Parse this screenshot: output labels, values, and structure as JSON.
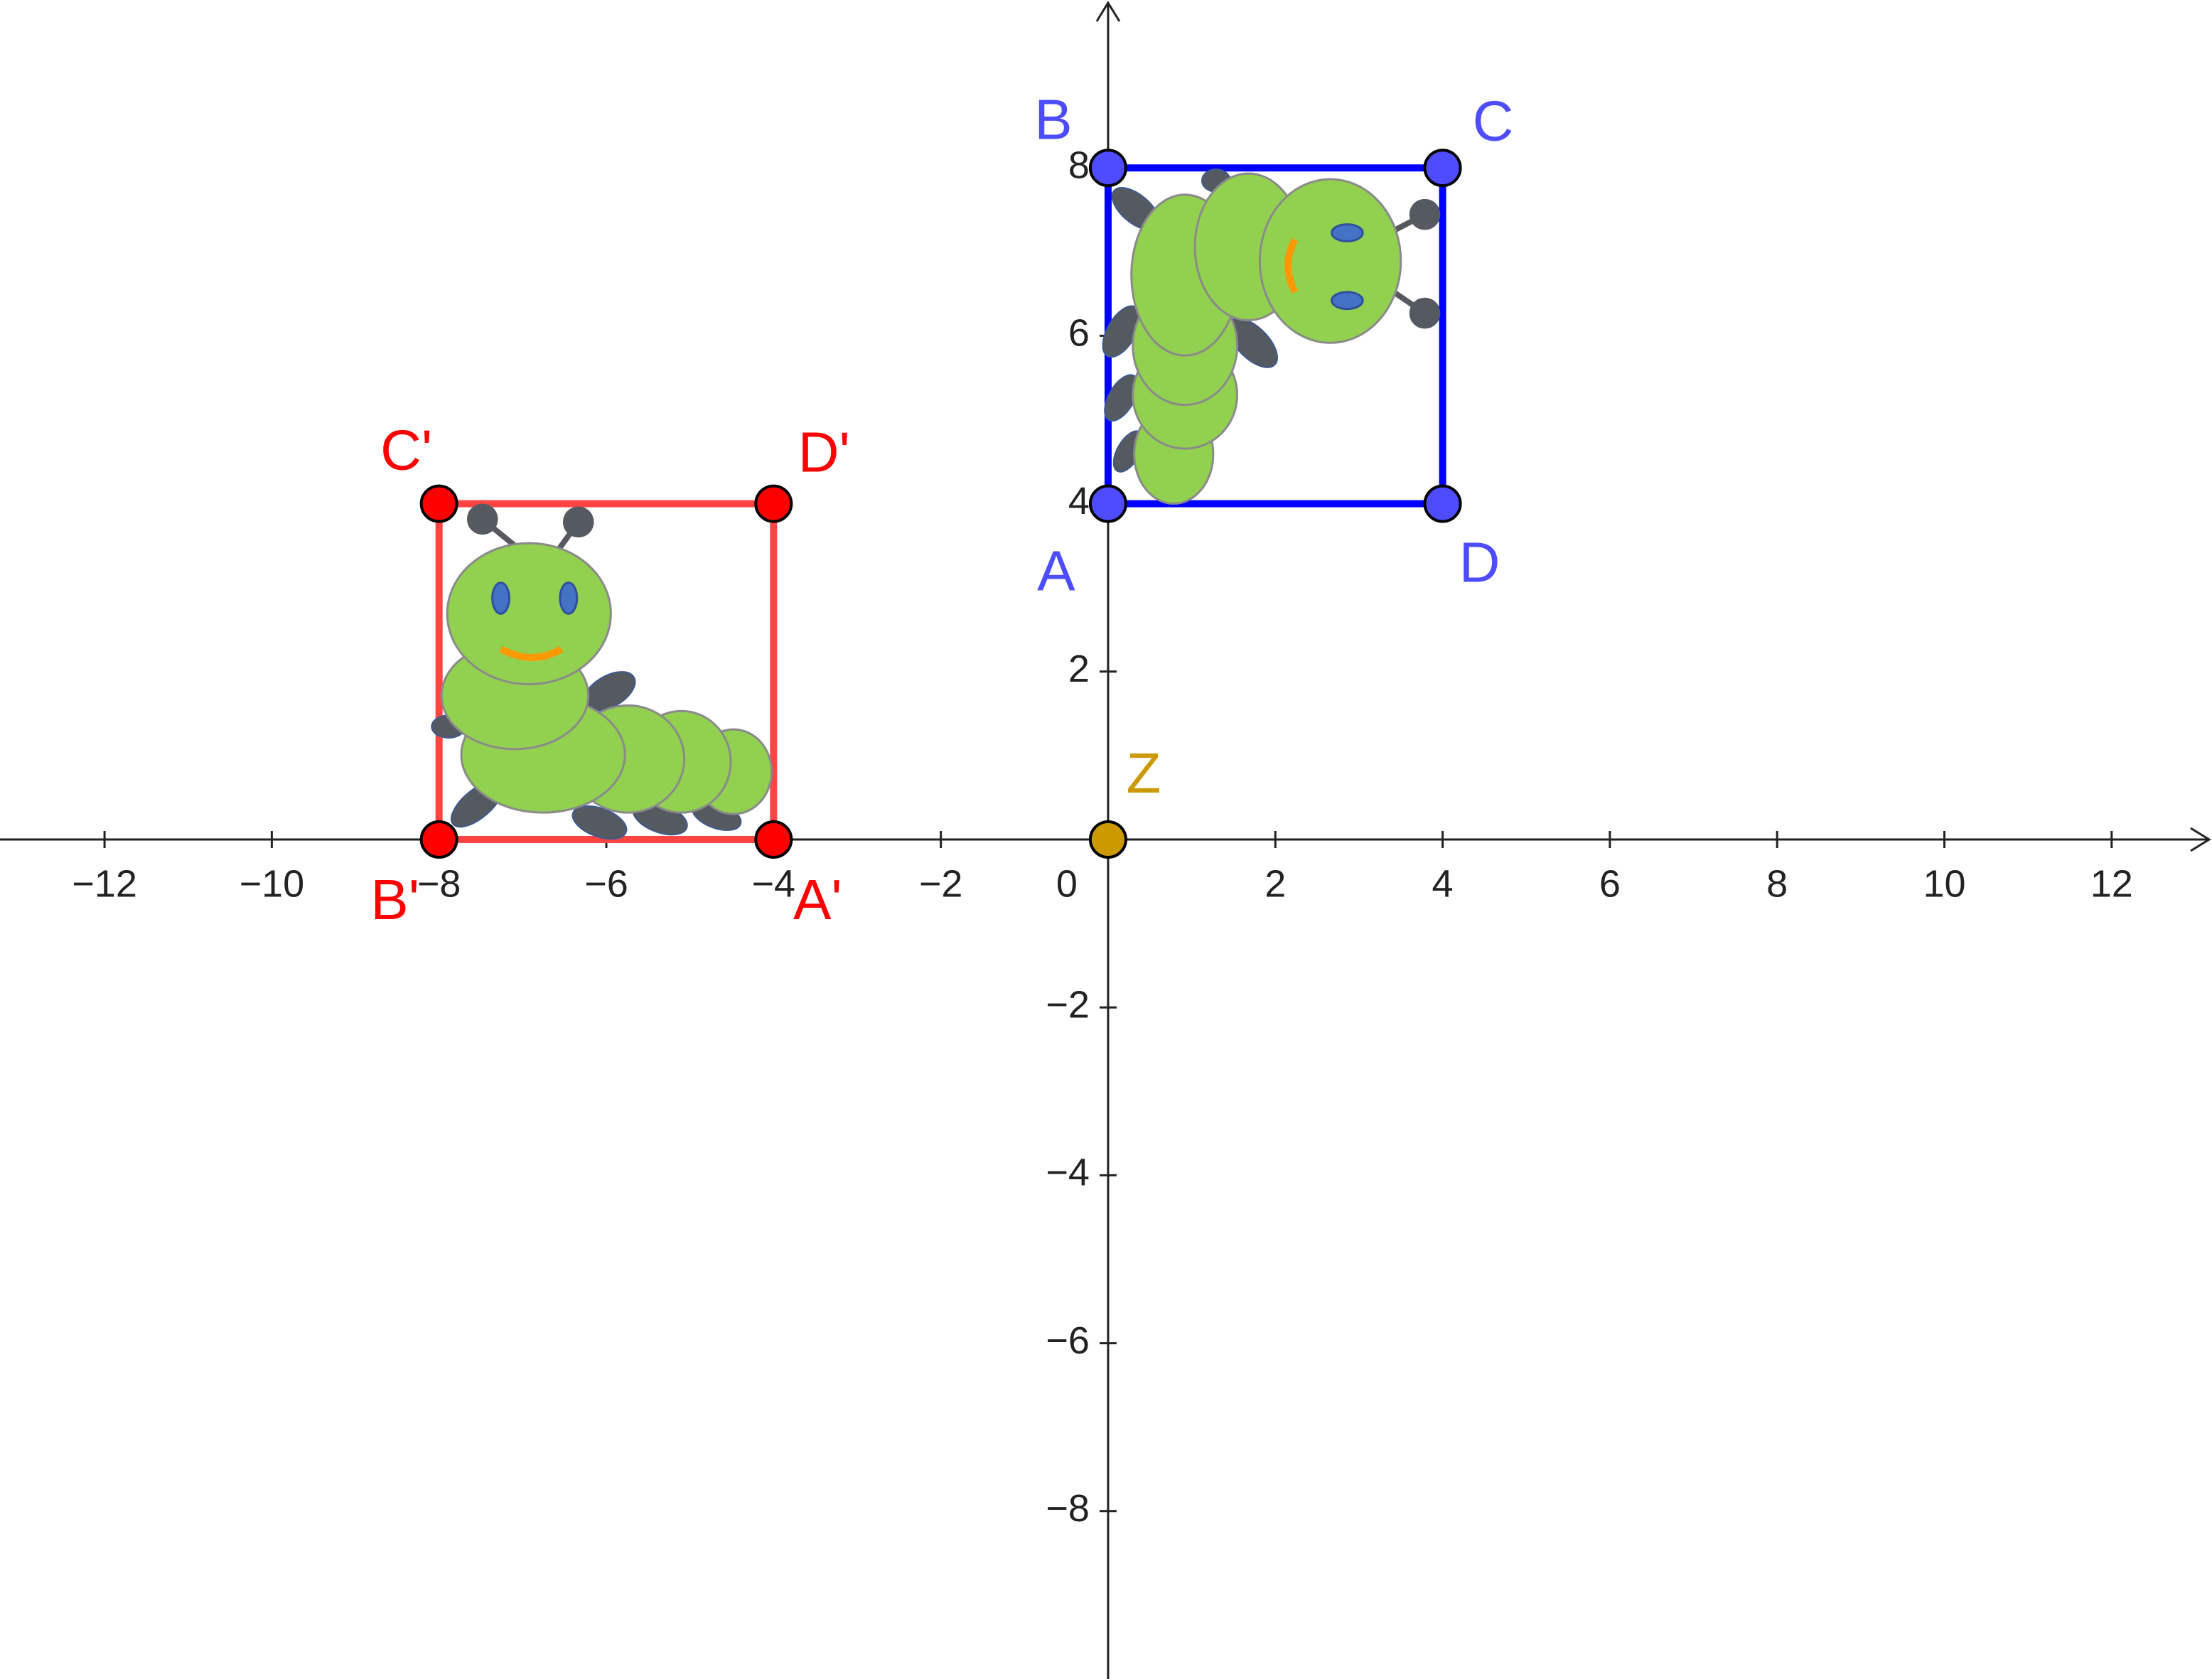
{
  "axes": {
    "xlim": [
      -13.25,
      13.2
    ],
    "ylim": [
      -10,
      10
    ],
    "xticks": [
      {
        "value": -12,
        "label": "−12"
      },
      {
        "value": -10,
        "label": "−10"
      },
      {
        "value": -8,
        "label": "−8"
      },
      {
        "value": -6,
        "label": "−6"
      },
      {
        "value": -4,
        "label": "−4"
      },
      {
        "value": -2,
        "label": "−2"
      },
      0,
      2,
      4,
      6,
      8,
      10,
      12
    ],
    "yticks": [
      {
        "value": -8,
        "label": "−8"
      },
      {
        "value": -6,
        "label": "−6"
      },
      {
        "value": -4,
        "label": "−4"
      },
      {
        "value": -2,
        "label": "−2"
      },
      2,
      4,
      6,
      8
    ]
  },
  "figures": [
    {
      "color": "#4d4dff",
      "edge_color": "#0000ff",
      "points": [
        {
          "label": "A",
          "x": 0,
          "y": 4
        },
        {
          "label": "B",
          "x": 0,
          "y": 8
        },
        {
          "label": "C",
          "x": 4,
          "y": 8
        },
        {
          "label": "D",
          "x": 4,
          "y": 4
        }
      ]
    },
    {
      "color": "#ff0000",
      "edge_color": "#ff4444",
      "points": [
        {
          "label": "A'",
          "x": -4,
          "y": 0
        },
        {
          "label": "B'",
          "x": -8,
          "y": 0
        },
        {
          "label": "C'",
          "x": -8,
          "y": 4
        },
        {
          "label": "D'",
          "x": -4,
          "y": 4
        }
      ]
    }
  ],
  "center": {
    "label": "Z",
    "x": 0,
    "y": 0,
    "color": "#cc9900"
  }
}
